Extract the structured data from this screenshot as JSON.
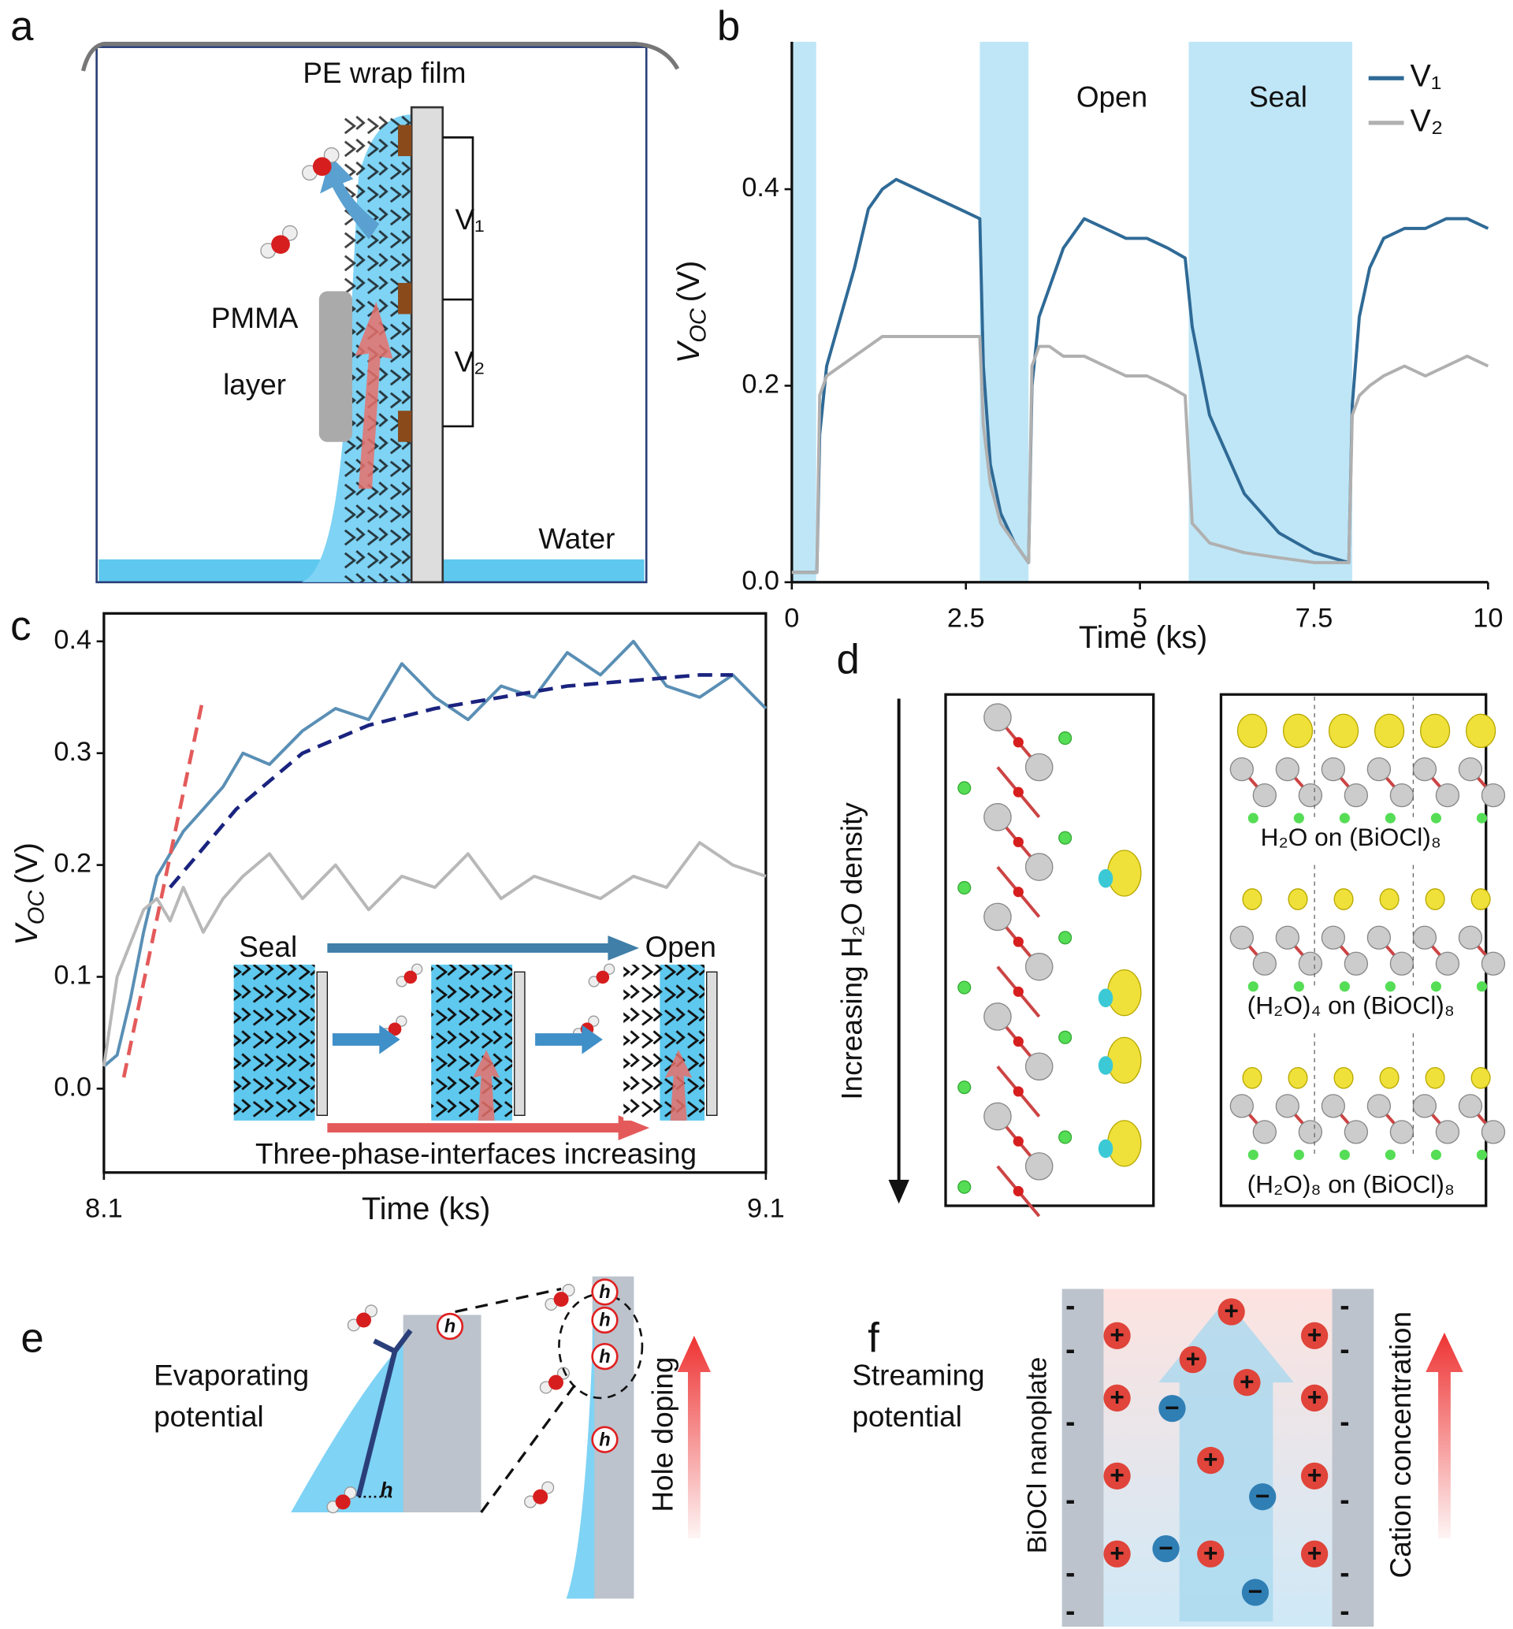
{
  "chart_data": [
    {
      "type": "line",
      "xlabel": "Time (ks)",
      "ylabel": {
        "symbol": "V",
        "subscript": "OC",
        "unit": "(V)"
      },
      "xlim": [
        0,
        10
      ],
      "ylim": [
        0,
        0.55
      ],
      "xticks": [
        0,
        2.5,
        5,
        7.5,
        10
      ],
      "yticks": [
        {
          "value": 0,
          "label": "0.0"
        },
        0.2,
        0.4
      ],
      "spans": [
        [
          0,
          0.35
        ],
        [
          2.7,
          3.4
        ],
        [
          5.7,
          8.05
        ]
      ],
      "span_color": "#bfe6f6",
      "annotations": [
        "Open",
        "Seal"
      ],
      "legend": "upper right",
      "frame": "axes",
      "x": [
        0,
        0.3,
        0.36,
        0.4,
        0.5,
        0.7,
        0.9,
        1.1,
        1.3,
        1.5,
        1.8,
        2.1,
        2.4,
        2.7,
        2.75,
        2.85,
        3.0,
        3.2,
        3.4,
        3.45,
        3.55,
        3.7,
        3.9,
        4.2,
        4.5,
        4.8,
        5.1,
        5.4,
        5.65,
        5.75,
        6.0,
        6.5,
        7.0,
        7.5,
        8.0,
        8.05,
        8.15,
        8.3,
        8.5,
        8.8,
        9.1,
        9.4,
        9.7,
        10
      ],
      "series": [
        {
          "name": "V₁",
          "color": "#2f6a96",
          "values": [
            0.01,
            0.01,
            0.01,
            0.15,
            0.22,
            0.27,
            0.32,
            0.38,
            0.4,
            0.41,
            0.4,
            0.39,
            0.38,
            0.37,
            0.22,
            0.12,
            0.07,
            0.04,
            0.02,
            0.2,
            0.27,
            0.3,
            0.34,
            0.37,
            0.36,
            0.35,
            0.35,
            0.34,
            0.33,
            0.26,
            0.17,
            0.09,
            0.05,
            0.03,
            0.02,
            0.18,
            0.27,
            0.32,
            0.35,
            0.36,
            0.36,
            0.37,
            0.37,
            0.36
          ]
        },
        {
          "name": "V₂",
          "color": "#b0b0b0",
          "values": [
            0.01,
            0.01,
            0.01,
            0.19,
            0.21,
            0.22,
            0.23,
            0.24,
            0.25,
            0.25,
            0.25,
            0.25,
            0.25,
            0.25,
            0.16,
            0.1,
            0.06,
            0.04,
            0.02,
            0.22,
            0.24,
            0.24,
            0.23,
            0.23,
            0.22,
            0.21,
            0.21,
            0.2,
            0.19,
            0.06,
            0.04,
            0.03,
            0.025,
            0.02,
            0.02,
            0.17,
            0.19,
            0.2,
            0.21,
            0.22,
            0.21,
            0.22,
            0.23,
            0.22
          ]
        }
      ]
    },
    {
      "type": "line",
      "xlabel": "Time (ks)",
      "ylabel": {
        "symbol": "V",
        "subscript": "OC",
        "unit": "(V)"
      },
      "xlim": [
        8.1,
        9.1
      ],
      "ylim": [
        -0.075,
        0.425
      ],
      "xticks": [
        8.1,
        9.1
      ],
      "yticks": [
        {
          "value": 0,
          "label": "0.0"
        },
        0.1,
        0.2,
        0.3,
        0.4
      ],
      "frame": "box",
      "x": [
        8.1,
        8.12,
        8.14,
        8.16,
        8.18,
        8.2,
        8.22,
        8.25,
        8.28,
        8.31,
        8.35,
        8.4,
        8.45,
        8.5,
        8.55,
        8.6,
        8.65,
        8.7,
        8.75,
        8.8,
        8.85,
        8.9,
        8.95,
        9.0,
        9.05,
        9.1
      ],
      "series": [
        {
          "color": "#5a8fb5",
          "values": [
            0.02,
            0.03,
            0.08,
            0.14,
            0.19,
            0.21,
            0.23,
            0.25,
            0.27,
            0.3,
            0.29,
            0.32,
            0.34,
            0.33,
            0.38,
            0.35,
            0.33,
            0.36,
            0.35,
            0.39,
            0.37,
            0.4,
            0.36,
            0.35,
            0.37,
            0.34
          ]
        },
        {
          "color": "#b8b8b8",
          "values": [
            0.02,
            0.1,
            0.13,
            0.16,
            0.17,
            0.15,
            0.18,
            0.14,
            0.17,
            0.19,
            0.21,
            0.17,
            0.2,
            0.16,
            0.19,
            0.18,
            0.21,
            0.17,
            0.19,
            0.18,
            0.17,
            0.19,
            0.18,
            0.22,
            0.2,
            0.19
          ]
        },
        {
          "color": "#1a237e",
          "dashed": true,
          "x": [
            8.2,
            8.3,
            8.4,
            8.5,
            8.6,
            8.7,
            8.8,
            8.9,
            9.0,
            9.05
          ],
          "values": [
            0.18,
            0.25,
            0.3,
            0.325,
            0.34,
            0.35,
            0.36,
            0.365,
            0.37,
            0.37
          ]
        },
        {
          "color": "#e45a5a",
          "dashed": true,
          "x": [
            8.13,
            8.25
          ],
          "values": [
            0.01,
            0.35
          ]
        }
      ]
    }
  ],
  "panel_labels": [
    "a",
    "b",
    "c",
    "d",
    "e",
    "f"
  ],
  "panel_a": {
    "film": "PE wrap film",
    "v1": "V₁",
    "v2": "V₂",
    "pmma": [
      "PMMA",
      "layer"
    ],
    "water": "Water"
  },
  "panel_c_inset": {
    "start": "Seal",
    "end": "Open",
    "caption": "Three-phase-interfaces increasing"
  },
  "panel_d": {
    "axis": "Increasing H₂O density",
    "labels": [
      "H₂O on (BiOCl)₈",
      "(H₂O)₄ on (BiOCl)₈",
      "(H₂O)₈ on (BiOCl)₈"
    ]
  },
  "panel_e": {
    "title": [
      "Evaporating",
      "potential"
    ],
    "hole": "h",
    "arrow": "Hole doping"
  },
  "panel_f": {
    "title": [
      "Streaming",
      "potential"
    ],
    "wall": "BiOCl nanoplate",
    "arrow": "Cation concentration",
    "cation": "+",
    "anion": "−",
    "surface": "-"
  }
}
